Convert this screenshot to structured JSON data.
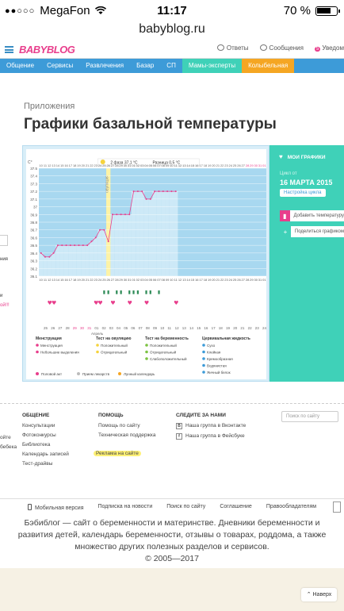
{
  "status_bar": {
    "carrier": "MegaFon",
    "signal": "●●○○○",
    "time": "11:17",
    "battery": "70 %"
  },
  "url": "babyblog.ru",
  "header": {
    "logo": "BABYBLOG",
    "links": [
      {
        "icon": "help-icon",
        "label": "Ответы"
      },
      {
        "icon": "mail-icon",
        "label": "Сообщения"
      },
      {
        "icon": "bell-icon",
        "label": "Уведом",
        "badge": "5"
      }
    ]
  },
  "nav": [
    "Общение",
    "Сервисы",
    "Развлечения",
    "Базар",
    "СП",
    "Мамы-эксперты",
    "Колыбельная"
  ],
  "breadcrumb": "Приложения",
  "title": "Графики базальной температуры",
  "left_peek": [
    "ния",
    "и",
    "ой!!!"
  ],
  "chart": {
    "y_ticks": [
      "37.5",
      "37.4",
      "37.3",
      "37.2",
      "37.1",
      "37",
      "36.9",
      "36.8",
      "36.7",
      "36.6",
      "36.5",
      "36.4",
      "36.3",
      "36.2",
      "36.1"
    ],
    "y_unit": "C°",
    "phase_note": "2 фаза 37,1 °C",
    "diff_note": "Разница 0,5 °C",
    "ovulation_label": "овуляция",
    "day_numbers": [
      "10",
      "11",
      "12",
      "13",
      "14",
      "15",
      "16",
      "17",
      "18",
      "19",
      "20",
      "21",
      "22",
      "23",
      "24",
      "25",
      "26",
      "27",
      "28",
      "29",
      "30",
      "31",
      "01",
      "02",
      "03",
      "04",
      "05",
      "06",
      "07",
      "08",
      "09",
      "10",
      "11",
      "12",
      "13",
      "14",
      "15",
      "16",
      "17",
      "18",
      "19",
      "20",
      "21",
      "22",
      "23",
      "24",
      "25",
      "26",
      "27",
      "28",
      "29",
      "30",
      "31",
      "01"
    ],
    "top_days": [
      "27",
      "28",
      "29",
      "30",
      "31",
      "01",
      "02",
      "03",
      "04",
      "05",
      "06",
      "07",
      "08",
      "09",
      "10",
      "11",
      "12",
      "13",
      "14",
      "15",
      "16",
      "17",
      "18",
      "19",
      "20",
      "21",
      "22",
      "23",
      "24",
      "25",
      "26",
      "27",
      "28",
      "29",
      "30",
      "31",
      "01",
      "02",
      "03",
      "04",
      "05",
      "06",
      "07",
      "08",
      "09",
      "10",
      "11",
      "12",
      "13",
      "14",
      "15",
      "16",
      "17",
      "18",
      "19",
      "20",
      "21",
      "22",
      "23",
      "24",
      "25",
      "26",
      "27"
    ],
    "bottom_days": [
      "25",
      "26",
      "27",
      "28",
      "29",
      "30",
      "31",
      "01",
      "02",
      "03",
      "04",
      "05",
      "06",
      "07",
      "08",
      "09",
      "10",
      "11",
      "12",
      "13",
      "14",
      "15",
      "16",
      "17",
      "18",
      "19",
      "20",
      "21",
      "22",
      "23",
      "24"
    ],
    "month_label": "Апрель",
    "temps": [
      36.4,
      36.35,
      36.35,
      36.4,
      36.5,
      36.5,
      36.5,
      36.5,
      36.5,
      36.5,
      36.5,
      36.5,
      36.55,
      36.6,
      36.7,
      36.7,
      36.55,
      36.9,
      36.9,
      36.9,
      36.9,
      36.9,
      37.2,
      37.2,
      37.2,
      37.1,
      37.1,
      37.2,
      37.2,
      37.2,
      37.2,
      37.2,
      37.2
    ],
    "legend": {
      "col1_title": "Менструация",
      "col1": [
        "Менструация",
        "Небольшие выделения"
      ],
      "col2_title": "Тест на овуляцию",
      "col2": [
        "Положительный",
        "Отрицательный"
      ],
      "col3_title": "Тест на беременность",
      "col3": [
        "Положительный",
        "Отрицательный",
        "Слабоположительный"
      ],
      "col4_title": "Цервикальная жидкость",
      "col4": [
        "Сухо",
        "Клейкая",
        "Кремообразная",
        "Водянистая",
        "Яичный белок"
      ],
      "bottom": [
        "Половой акт",
        "Прием лекарств",
        "Лунный календарь"
      ]
    }
  },
  "right_panel": {
    "my_charts": "МОИ ГРАФИКИ",
    "cycle_from": "Цикл от",
    "cycle_date": "16 МАРТА 2015",
    "settings": "Настройка цикла",
    "add_temp": "Добавить температуру",
    "share": "Поделиться графиком"
  },
  "footer": {
    "col1_title": "ОБЩЕНИЕ",
    "col1": [
      "Консультации",
      "Фотоконкурсы",
      "Библиотека",
      "Календарь записей",
      "Тест-драйвы"
    ],
    "col2_title": "ПОМОЩЬ",
    "col2": [
      "Помощь по сайту",
      "Техническая поддержка",
      "Реклама на сайте"
    ],
    "col3_title": "СЛЕДИТЕ ЗА НАМИ",
    "col3": [
      "Наша группа в Вконтакте",
      "Наша группа в Фейсбуке"
    ],
    "left_peek": [
      "ойте",
      "бебека"
    ],
    "search_placeholder": "Поиск по сайту"
  },
  "bottom_links": [
    "Мобильная версия",
    "Подписка на новости",
    "Поиск по сайту",
    "Соглашение",
    "Правообладателям"
  ],
  "about": "Бэбиблог — сайт о беременности и материнстве. Дневники беременности и развития детей, календарь беременности, отзывы о товарах, роддома, а также множество других полезных разделов и сервисов.",
  "copyright": "© 2005—2017",
  "up_button": "Наверх",
  "colors": {
    "accent_blue": "#3d9bd8",
    "teal": "#3fd1b8",
    "pink": "#e83e8c",
    "orange": "#f5a623"
  }
}
